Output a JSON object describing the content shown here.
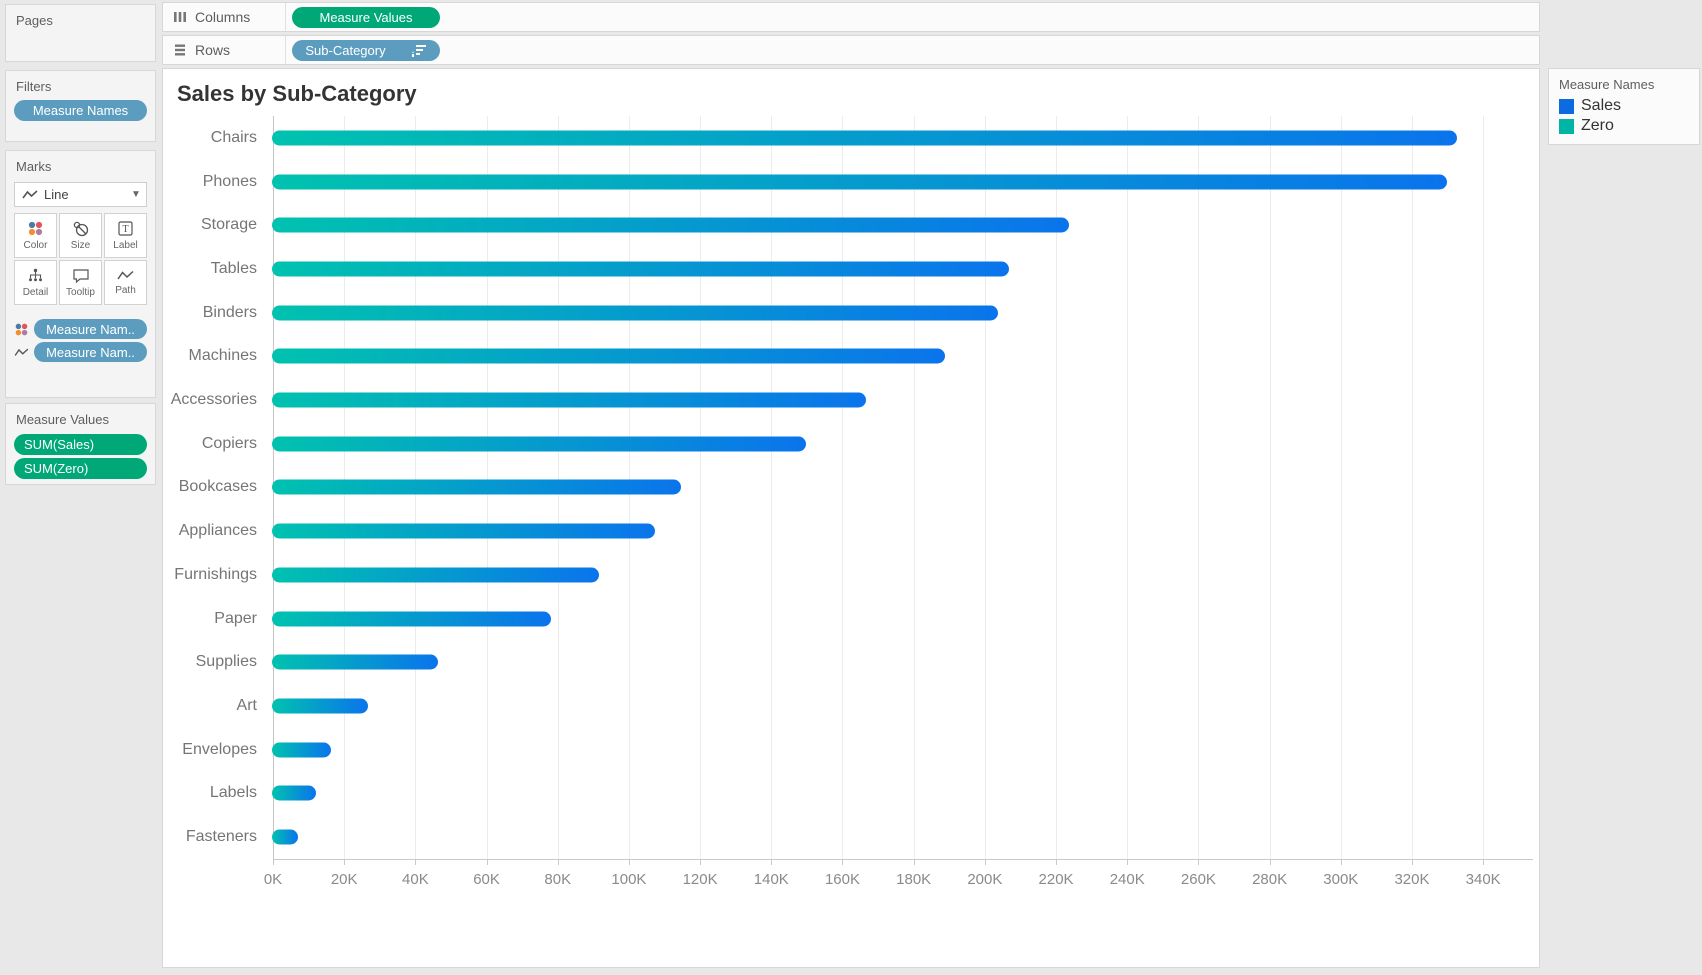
{
  "shelves": {
    "columns": {
      "label": "Columns",
      "pill": "Measure Values"
    },
    "rows": {
      "label": "Rows",
      "pill": "Sub-Category"
    }
  },
  "sidebar": {
    "pages": {
      "title": "Pages"
    },
    "filters": {
      "title": "Filters",
      "pills": [
        "Measure Names"
      ]
    },
    "marks": {
      "title": "Marks",
      "mark_type": "Line",
      "buttons": [
        {
          "label": "Color",
          "icon": "color-icon"
        },
        {
          "label": "Size",
          "icon": "size-icon"
        },
        {
          "label": "Label",
          "icon": "label-icon"
        },
        {
          "label": "Detail",
          "icon": "detail-icon"
        },
        {
          "label": "Tooltip",
          "icon": "tooltip-icon"
        },
        {
          "label": "Path",
          "icon": "path-icon"
        }
      ],
      "pills": [
        {
          "icon": "color-icon",
          "label": "Measure Nam.."
        },
        {
          "icon": "path-icon",
          "label": "Measure Nam.."
        }
      ]
    },
    "measure_values": {
      "title": "Measure Values",
      "pills": [
        "SUM(Sales)",
        "SUM(Zero)"
      ]
    }
  },
  "legend": {
    "title": "Measure Names",
    "items": [
      {
        "label": "Sales",
        "color": "#0b6be0"
      },
      {
        "label": "Zero",
        "color": "#00b5a4"
      }
    ]
  },
  "chart_data": {
    "type": "bar",
    "orientation": "horizontal",
    "title": "Sales by Sub-Category",
    "xlabel": "",
    "ylabel": "",
    "categories": [
      "Chairs",
      "Phones",
      "Storage",
      "Tables",
      "Binders",
      "Machines",
      "Accessories",
      "Copiers",
      "Bookcases",
      "Appliances",
      "Furnishings",
      "Paper",
      "Supplies",
      "Art",
      "Envelopes",
      "Labels",
      "Fasteners"
    ],
    "values": [
      333000,
      330000,
      224000,
      207000,
      204000,
      189000,
      167000,
      150000,
      115000,
      107500,
      92000,
      78500,
      46700,
      27100,
      16500,
      12500,
      3000
    ],
    "axis_max": 354000,
    "ticks": [
      0,
      20000,
      40000,
      60000,
      80000,
      100000,
      120000,
      140000,
      160000,
      180000,
      200000,
      220000,
      240000,
      260000,
      280000,
      300000,
      320000,
      340000
    ],
    "tick_labels": [
      "0K",
      "20K",
      "40K",
      "60K",
      "80K",
      "100K",
      "120K",
      "140K",
      "160K",
      "180K",
      "200K",
      "220K",
      "240K",
      "260K",
      "280K",
      "300K",
      "320K",
      "340K"
    ],
    "grid": "vertical",
    "legend_position": "top-right",
    "bar_gradient": [
      "#00c2af",
      "#0a74ec"
    ]
  }
}
